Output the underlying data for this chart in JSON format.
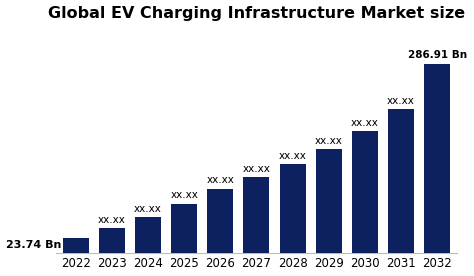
{
  "title": "Global EV Charging Infrastructure Market size",
  "categories": [
    "2022",
    "2023",
    "2024",
    "2025",
    "2026",
    "2027",
    "2028",
    "2029",
    "2030",
    "2031",
    "2032"
  ],
  "values": [
    23.74,
    38,
    55,
    75,
    98,
    115,
    135,
    158,
    185,
    218,
    286.91
  ],
  "bar_color": "#0d2060",
  "background_color": "#ffffff",
  "labels": [
    "23.74 Bn",
    "xx.xx",
    "xx.xx",
    "xx.xx",
    "xx.xx",
    "xx.xx",
    "xx.xx",
    "xx.xx",
    "xx.xx",
    "xx.xx",
    "286.91 Bn"
  ],
  "title_fontsize": 11.5,
  "label_fontsize": 7.5,
  "xlabel_fontsize": 8.5,
  "ylim_max": 340,
  "figsize": [
    4.74,
    2.76
  ],
  "dpi": 100
}
